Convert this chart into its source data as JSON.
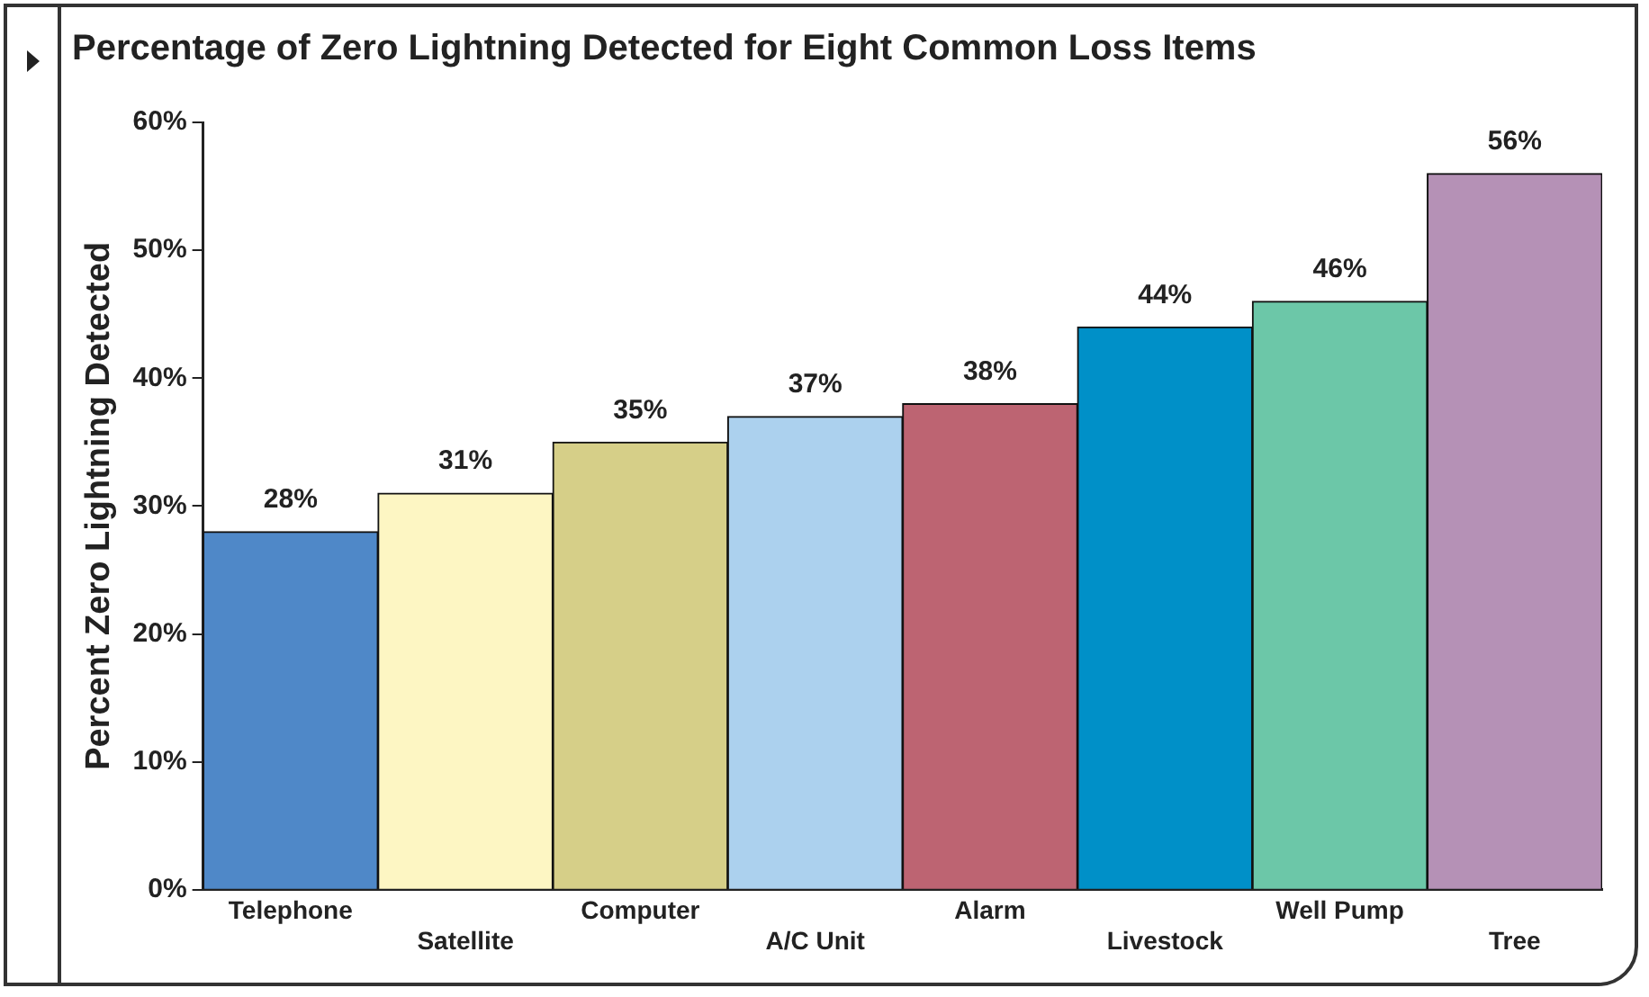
{
  "chart_data": {
    "type": "bar",
    "title": "Percentage of Zero Lightning Detected for Eight Common Loss Items",
    "ylabel": "Percent Zero Lightning Detected",
    "categories": [
      "Telephone",
      "Satellite",
      "Computer",
      "A/C Unit",
      "Alarm",
      "Livestock",
      "Well Pump",
      "Tree"
    ],
    "values": [
      28,
      31,
      35,
      37,
      38,
      44,
      46,
      56
    ],
    "colors": [
      "#4f88c8",
      "#fdf6c3",
      "#d6cf88",
      "#acd1ee",
      "#bd6472",
      "#0090c8",
      "#6cc7a8",
      "#b591b6"
    ],
    "value_labels": [
      "28%",
      "31%",
      "35%",
      "37%",
      "38%",
      "44%",
      "46%",
      "56%"
    ],
    "ylim": [
      0,
      60
    ],
    "yticks": [
      {
        "value": 0,
        "label": "0%"
      },
      {
        "value": 10,
        "label": "10%"
      },
      {
        "value": 20,
        "label": "20%"
      },
      {
        "value": 30,
        "label": "30%"
      },
      {
        "value": 40,
        "label": "40%"
      },
      {
        "value": 50,
        "label": "50%"
      },
      {
        "value": 60,
        "label": "60%"
      }
    ],
    "grid": false,
    "legend": false
  }
}
